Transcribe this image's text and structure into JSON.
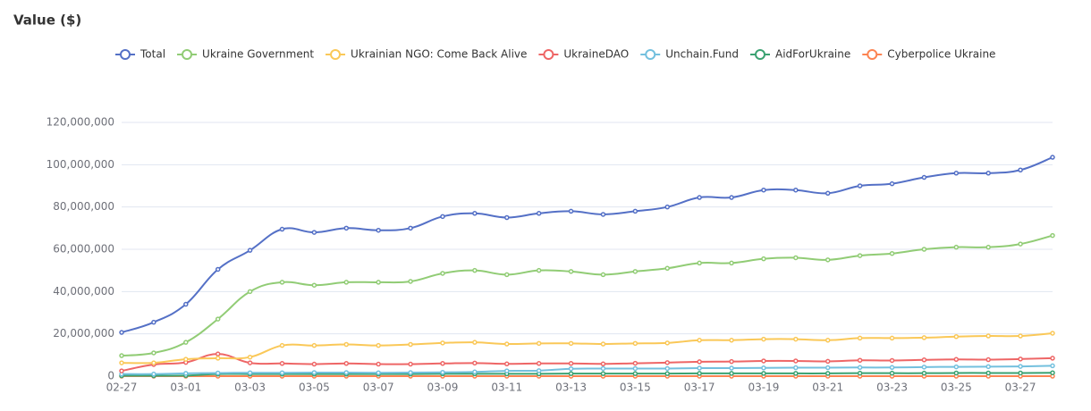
{
  "chart_data": {
    "type": "line",
    "title": "Value ($)",
    "categories": [
      "02-27",
      null,
      "03-01",
      null,
      "03-03",
      null,
      "03-05",
      null,
      "03-07",
      null,
      "03-09",
      null,
      "03-11",
      null,
      "03-13",
      null,
      "03-15",
      null,
      "03-17",
      null,
      "03-19",
      null,
      "03-21",
      null,
      "03-23",
      null,
      "03-25",
      null,
      "03-27",
      null
    ],
    "ylim": [
      0,
      120000000
    ],
    "yticks": [
      0,
      {
        "value": 20000000,
        "label": "20,000,000"
      },
      {
        "value": 40000000,
        "label": "40,000,000"
      },
      {
        "value": 60000000,
        "label": "60,000,000"
      },
      {
        "value": 80000000,
        "label": "80,000,000"
      },
      {
        "value": 100000000,
        "label": "100,000,000"
      },
      {
        "value": 120000000,
        "label": "120,000,000"
      }
    ],
    "grid": true,
    "legend": "top",
    "smooth": true,
    "series": [
      {
        "name": "Total",
        "color": "#5470c6",
        "values": [
          20700000,
          25500000,
          34000000,
          50500000,
          59500000,
          69500000,
          68000000,
          70000000,
          69000000,
          70000000,
          75500000,
          77000000,
          75000000,
          77000000,
          78000000,
          76500000,
          78000000,
          80000000,
          84500000,
          84500000,
          88000000,
          88000000,
          86500000,
          90000000,
          91000000,
          94000000,
          96000000,
          96000000,
          97500000,
          103500000
        ]
      },
      {
        "name": "Ukraine Government",
        "color": "#91cc75",
        "values": [
          9700000,
          11000000,
          16000000,
          27000000,
          40000000,
          44400000,
          43000000,
          44400000,
          44400000,
          44800000,
          48600000,
          50000000,
          48000000,
          50000000,
          49500000,
          48000000,
          49500000,
          51000000,
          53500000,
          53500000,
          55500000,
          56000000,
          55000000,
          57000000,
          58000000,
          60000000,
          61000000,
          61000000,
          62500000,
          66500000
        ]
      },
      {
        "name": "Ukrainian NGO: Come Back Alive",
        "color": "#fac858",
        "values": [
          6300000,
          6300000,
          8000000,
          8500000,
          9000000,
          14500000,
          14500000,
          15000000,
          14500000,
          15000000,
          15700000,
          16000000,
          15200000,
          15500000,
          15500000,
          15200000,
          15500000,
          15700000,
          17000000,
          17000000,
          17500000,
          17500000,
          17000000,
          18000000,
          18000000,
          18200000,
          18700000,
          19000000,
          19000000,
          20300000
        ]
      },
      {
        "name": "UkraineDAO",
        "color": "#ee6666",
        "values": [
          2500000,
          5500000,
          6500000,
          10500000,
          6300000,
          6000000,
          5700000,
          6000000,
          5700000,
          5700000,
          6000000,
          6200000,
          5800000,
          6000000,
          6000000,
          5800000,
          6100000,
          6400000,
          6800000,
          6900000,
          7200000,
          7200000,
          7000000,
          7500000,
          7400000,
          7700000,
          7900000,
          7800000,
          8100000,
          8500000
        ]
      },
      {
        "name": "Unchain.Fund",
        "color": "#73c0de",
        "values": [
          1000000,
          1000000,
          1300000,
          1500000,
          1600000,
          1600000,
          1700000,
          1700000,
          1600000,
          1700000,
          1800000,
          2000000,
          2500000,
          2600000,
          3500000,
          3600000,
          3600000,
          3600000,
          3800000,
          3800000,
          3900000,
          4000000,
          4000000,
          4100000,
          4100000,
          4300000,
          4400000,
          4500000,
          4600000,
          4900000
        ]
      },
      {
        "name": "AidForUkraine",
        "color": "#3ba272",
        "values": [
          200000,
          200000,
          300000,
          1000000,
          1000000,
          1000000,
          1000000,
          1000000,
          1000000,
          1000000,
          1100000,
          1100000,
          1100000,
          1100000,
          1200000,
          1200000,
          1200000,
          1200000,
          1300000,
          1300000,
          1300000,
          1300000,
          1300000,
          1400000,
          1400000,
          1400000,
          1500000,
          1500000,
          1500000,
          1600000
        ]
      },
      {
        "name": "Cyberpolice Ukraine",
        "color": "#fc8452",
        "values": [
          0,
          0,
          0,
          0,
          0,
          0,
          0,
          0,
          0,
          0,
          0,
          0,
          0,
          0,
          0,
          0,
          0,
          0,
          0,
          0,
          0,
          0,
          0,
          0,
          0,
          0,
          0,
          0,
          0,
          0
        ]
      }
    ]
  }
}
